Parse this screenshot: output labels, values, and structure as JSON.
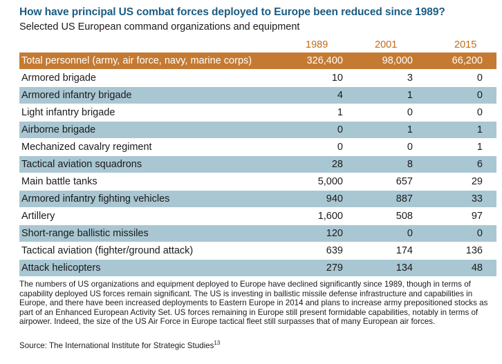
{
  "title": "How have principal US combat forces deployed to Europe been reduced since 1989?",
  "subtitle": "Selected US European command organizations and equipment",
  "table": {
    "years": [
      "1989",
      "2001",
      "2015"
    ],
    "rows": [
      {
        "label": "Total personnel (army, air force, navy, marine corps)",
        "values": [
          "326,400",
          "98,000",
          "66,200"
        ]
      },
      {
        "label": "Armored brigade",
        "values": [
          "10",
          "3",
          "0"
        ]
      },
      {
        "label": "Armored infantry brigade",
        "values": [
          "4",
          "1",
          "0"
        ]
      },
      {
        "label": "Light infantry brigade",
        "values": [
          "1",
          "0",
          "0"
        ]
      },
      {
        "label": "Airborne brigade",
        "values": [
          "0",
          "1",
          "1"
        ]
      },
      {
        "label": "Mechanized cavalry regiment",
        "values": [
          "0",
          "0",
          "1"
        ]
      },
      {
        "label": "Tactical aviation squadrons",
        "values": [
          "28",
          "8",
          "6"
        ]
      },
      {
        "label": "Main battle tanks",
        "values": [
          "5,000",
          "657",
          "29"
        ]
      },
      {
        "label": "Armored infantry fighting vehicles",
        "values": [
          "940",
          "887",
          "33"
        ]
      },
      {
        "label": "Artillery",
        "values": [
          "1,600",
          "508",
          "97"
        ]
      },
      {
        "label": "Short-range ballistic missiles",
        "values": [
          "120",
          "0",
          "0"
        ]
      },
      {
        "label": "Tactical aviation (fighter/ground attack)",
        "values": [
          "639",
          "174",
          "136"
        ]
      },
      {
        "label": "Attack helicopters",
        "values": [
          "279",
          "134",
          "48"
        ]
      }
    ]
  },
  "note": "The numbers of US organizations and equipment deployed to Europe have declined significantly since 1989, though in terms of capability deployed US forces remain significant. The US is investing in ballistic missile defense infrastructure and capabilities in Europe, and there have been increased deployments to Eastern Europe in 2014 and plans to increase army prepositioned stocks as part of an Enhanced European Activity Set. US forces remaining in Europe still present formidable capabilities, notably in terms of airpower. Indeed, the size of the US Air Force in Europe tactical fleet still surpasses that of many European air forces.",
  "source": {
    "text": "Source: The International Institute for Strategic Studies",
    "footnote": "13"
  },
  "colors": {
    "title": "#1b5c82",
    "year_header": "#c06a1c",
    "total_row": "#c47a33",
    "stripe": "#a9c7d2"
  }
}
